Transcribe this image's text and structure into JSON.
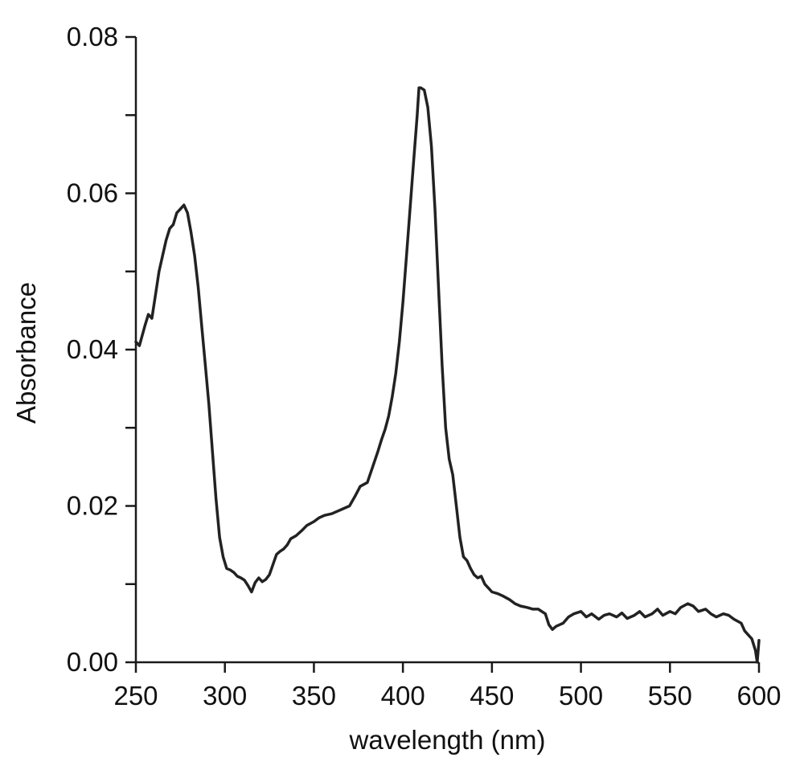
{
  "chart_data": {
    "type": "line",
    "title": "",
    "xlabel": "wavelength (nm)",
    "ylabel": "Absorbance",
    "xlim": [
      250,
      600
    ],
    "ylim": [
      0,
      0.08
    ],
    "x_ticks": [
      250,
      300,
      350,
      400,
      450,
      500,
      550,
      600
    ],
    "y_ticks_labeled": [
      0.0,
      0.02,
      0.04,
      0.06,
      0.08
    ],
    "y_ticks_minor": [
      0.01,
      0.03,
      0.05,
      0.07
    ],
    "x_tick_labels": [
      "250",
      "300",
      "350",
      "400",
      "450",
      "500",
      "550",
      "600"
    ],
    "y_tick_labels": [
      "0.00",
      "0.02",
      "0.04",
      "0.06",
      "0.08"
    ],
    "grid": false,
    "legend": "none",
    "line_color": "#222222",
    "series": [
      {
        "x": [
          250,
          252,
          255,
          257,
          259,
          261,
          263,
          265,
          267,
          269,
          271,
          273,
          275,
          277,
          279,
          281,
          283,
          285,
          287,
          289,
          291,
          293,
          295,
          297,
          299,
          301,
          303,
          305,
          307,
          309,
          311,
          313,
          315,
          317,
          319,
          321,
          323,
          325,
          327,
          329,
          331,
          333,
          335,
          337,
          340,
          343,
          346,
          350,
          353,
          356,
          360,
          363,
          366,
          370,
          373,
          376,
          380,
          383,
          386,
          388,
          390,
          392,
          394,
          396,
          398,
          400,
          402,
          404,
          406,
          408,
          409,
          410,
          412,
          414,
          416,
          418,
          420,
          422,
          424,
          426,
          428,
          430,
          432,
          434,
          436,
          438,
          440,
          442,
          444,
          446,
          448,
          450,
          453,
          456,
          460,
          463,
          466,
          470,
          473,
          476,
          480,
          482,
          484,
          486,
          488,
          490,
          493,
          496,
          500,
          503,
          506,
          510,
          513,
          516,
          520,
          523,
          526,
          530,
          533,
          536,
          540,
          543,
          546,
          550,
          553,
          556,
          560,
          563,
          566,
          570,
          573,
          576,
          580,
          583,
          586,
          590,
          592,
          594,
          596,
          598,
          599,
          600
        ],
        "y": [
          0.041,
          0.0405,
          0.043,
          0.0445,
          0.044,
          0.047,
          0.05,
          0.052,
          0.054,
          0.0555,
          0.056,
          0.0575,
          0.058,
          0.0585,
          0.0575,
          0.055,
          0.052,
          0.048,
          0.043,
          0.038,
          0.033,
          0.027,
          0.021,
          0.016,
          0.0135,
          0.012,
          0.0118,
          0.0115,
          0.011,
          0.0108,
          0.0105,
          0.0098,
          0.009,
          0.0102,
          0.0108,
          0.0103,
          0.0106,
          0.0112,
          0.0125,
          0.0138,
          0.0142,
          0.0145,
          0.015,
          0.0158,
          0.0162,
          0.0168,
          0.0175,
          0.018,
          0.0185,
          0.0188,
          0.019,
          0.0193,
          0.0196,
          0.02,
          0.0212,
          0.0225,
          0.023,
          0.025,
          0.027,
          0.0285,
          0.0298,
          0.0315,
          0.034,
          0.037,
          0.041,
          0.046,
          0.052,
          0.058,
          0.064,
          0.07,
          0.0735,
          0.0735,
          0.0732,
          0.071,
          0.066,
          0.058,
          0.048,
          0.038,
          0.03,
          0.026,
          0.024,
          0.02,
          0.016,
          0.0135,
          0.013,
          0.012,
          0.0112,
          0.0108,
          0.011,
          0.01,
          0.0095,
          0.009,
          0.0088,
          0.0085,
          0.008,
          0.0075,
          0.0072,
          0.007,
          0.0068,
          0.0068,
          0.0062,
          0.0048,
          0.0042,
          0.0046,
          0.0048,
          0.005,
          0.0058,
          0.0062,
          0.0065,
          0.0058,
          0.0062,
          0.0055,
          0.006,
          0.0062,
          0.0058,
          0.0063,
          0.0056,
          0.006,
          0.0065,
          0.0058,
          0.0062,
          0.0068,
          0.006,
          0.0065,
          0.0062,
          0.007,
          0.0075,
          0.0072,
          0.0065,
          0.0068,
          0.0062,
          0.0058,
          0.0062,
          0.006,
          0.0055,
          0.005,
          0.004,
          0.0035,
          0.003,
          0.0015,
          0.0,
          0.0028
        ]
      }
    ]
  }
}
